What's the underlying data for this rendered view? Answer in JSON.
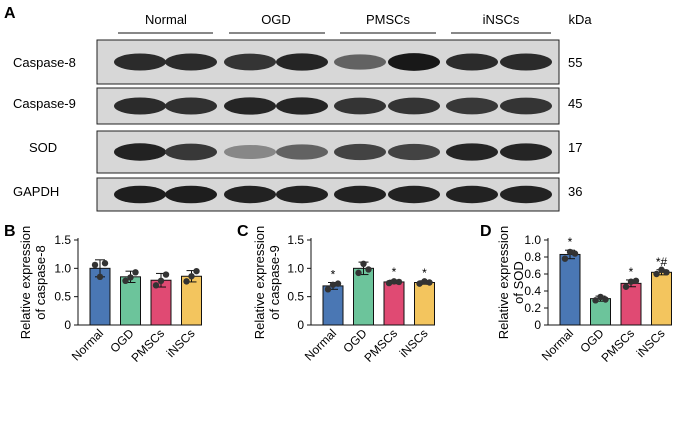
{
  "figure": {
    "panel_letters": [
      "A",
      "B",
      "C",
      "D"
    ]
  },
  "blot": {
    "panel_letter": "A",
    "groups": [
      "Normal",
      "OGD",
      "PMSCs",
      "iNSCs"
    ],
    "unit_header": "kDa",
    "proteins": [
      {
        "name": "Caspase-8",
        "kda": "55"
      },
      {
        "name": "Caspase-9",
        "kda": "45"
      },
      {
        "name": "SOD",
        "kda": "17"
      },
      {
        "name": "GAPDH",
        "kda": "36"
      }
    ],
    "band_intensity": [
      [
        0.85,
        0.85,
        0.8,
        0.88,
        0.55,
        0.95,
        0.85,
        0.85
      ],
      [
        0.85,
        0.82,
        0.88,
        0.88,
        0.8,
        0.8,
        0.78,
        0.8
      ],
      [
        0.9,
        0.78,
        0.35,
        0.55,
        0.72,
        0.72,
        0.88,
        0.88
      ],
      [
        0.92,
        0.92,
        0.9,
        0.9,
        0.9,
        0.9,
        0.9,
        0.9
      ]
    ]
  },
  "colors": {
    "Normal": "#4a77b4",
    "OGD": "#6cc49b",
    "PMSCs": "#e04a73",
    "iNSCs": "#f3c55e"
  },
  "chart_data": [
    {
      "panel_letter": "B",
      "type": "bar",
      "title": "",
      "ylabel": [
        "Relative expression",
        "of caspase-8"
      ],
      "xlabel": "",
      "categories": [
        "Normal",
        "OGD",
        "PMSCs",
        "iNSCs"
      ],
      "values": [
        1.0,
        0.85,
        0.79,
        0.86
      ],
      "errors": [
        0.15,
        0.1,
        0.12,
        0.1
      ],
      "points": [
        [
          1.06,
          0.85,
          1.09
        ],
        [
          0.78,
          0.84,
          0.93
        ],
        [
          0.7,
          0.78,
          0.89
        ],
        [
          0.77,
          0.86,
          0.95
        ]
      ],
      "annotations": [
        "",
        "",
        "",
        ""
      ],
      "ylim": [
        0,
        1.5
      ],
      "yticks": [
        "0",
        "0.5",
        "1.0",
        "1.5"
      ],
      "ytick_values": [
        0,
        0.5,
        1.0,
        1.5
      ]
    },
    {
      "panel_letter": "C",
      "type": "bar",
      "title": "",
      "ylabel": [
        "Relative expression",
        "of caspase-9"
      ],
      "xlabel": "",
      "categories": [
        "Normal",
        "OGD",
        "PMSCs",
        "iNSCs"
      ],
      "values": [
        0.69,
        1.0,
        0.76,
        0.75
      ],
      "errors": [
        0.06,
        0.11,
        0.03,
        0.03
      ],
      "points": [
        [
          0.63,
          0.71,
          0.73
        ],
        [
          0.92,
          1.08,
          0.98
        ],
        [
          0.74,
          0.77,
          0.76
        ],
        [
          0.73,
          0.77,
          0.75
        ]
      ],
      "annotations": [
        "*",
        "",
        "*",
        "*"
      ],
      "ylim": [
        0,
        1.5
      ],
      "yticks": [
        "0",
        "0.5",
        "1.0",
        "1.5"
      ],
      "ytick_values": [
        0,
        0.5,
        1.0,
        1.5
      ]
    },
    {
      "panel_letter": "D",
      "type": "bar",
      "title": "",
      "ylabel": [
        "Relative expression",
        "of SOD"
      ],
      "xlabel": "",
      "categories": [
        "Normal",
        "OGD",
        "PMSCs",
        "iNSCs"
      ],
      "values": [
        0.83,
        0.31,
        0.49,
        0.62
      ],
      "errors": [
        0.05,
        0.03,
        0.04,
        0.03
      ],
      "points": [
        [
          0.78,
          0.86,
          0.84
        ],
        [
          0.29,
          0.33,
          0.3
        ],
        [
          0.45,
          0.51,
          0.52
        ],
        [
          0.6,
          0.65,
          0.62
        ]
      ],
      "annotations": [
        "*",
        "",
        "*",
        "*#"
      ],
      "ylim": [
        0,
        1.0
      ],
      "yticks": [
        "0",
        "0.2",
        "0.4",
        "0.6",
        "0.8",
        "1.0"
      ],
      "ytick_values": [
        0,
        0.2,
        0.4,
        0.6,
        0.8,
        1.0
      ]
    }
  ]
}
